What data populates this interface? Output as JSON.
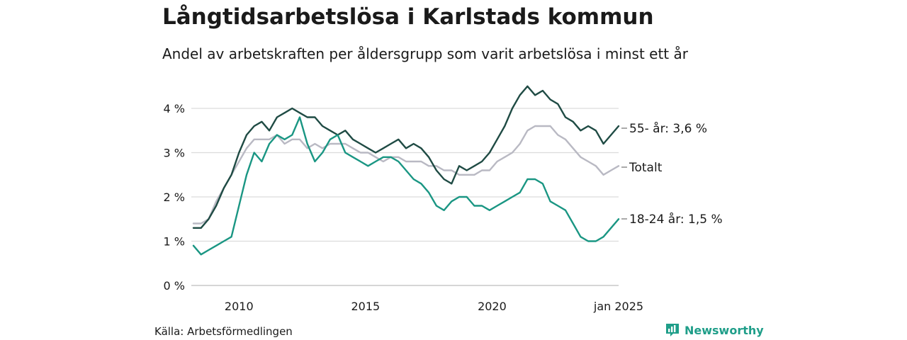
{
  "title": "Långtidsarbetslösa i Karlstads kommun",
  "subtitle": "Andel av arbetskraften per åldersgrupp som varit arbetslösa i minst ett år",
  "source": "Källa: Arbetsförmedlingen",
  "brand": "Newsworthy",
  "colors": {
    "older": "#1f4b44",
    "total": "#b9b9c3",
    "young": "#1a9683",
    "grid": "#dcdcdc",
    "brand": "#1f9e89"
  },
  "chart_data": {
    "type": "line",
    "ylim": [
      0,
      4.5
    ],
    "xlim": [
      2008.2,
      2025.0
    ],
    "y_ticks": [
      {
        "value": 0,
        "label": "0 %"
      },
      {
        "value": 1,
        "label": "1 %"
      },
      {
        "value": 2,
        "label": "2 %"
      },
      {
        "value": 3,
        "label": "3 %"
      },
      {
        "value": 4,
        "label": "4 %"
      }
    ],
    "x_ticks": [
      {
        "value": 2010,
        "label": "2010"
      },
      {
        "value": 2015,
        "label": "2015"
      },
      {
        "value": 2020,
        "label": "2020"
      },
      {
        "value": 2025,
        "label": "jan 2025"
      }
    ],
    "series": [
      {
        "key": "total",
        "name": "Totalt",
        "end_label": "Totalt",
        "x": [
          2008.2,
          2008.5,
          2008.8,
          2009.1,
          2009.4,
          2009.7,
          2010.0,
          2010.3,
          2010.6,
          2010.9,
          2011.2,
          2011.5,
          2011.8,
          2012.1,
          2012.4,
          2012.7,
          2013.0,
          2013.3,
          2013.6,
          2013.9,
          2014.2,
          2014.5,
          2014.8,
          2015.1,
          2015.4,
          2015.7,
          2016.0,
          2016.3,
          2016.6,
          2016.9,
          2017.2,
          2017.5,
          2017.8,
          2018.1,
          2018.4,
          2018.7,
          2019.0,
          2019.3,
          2019.6,
          2019.9,
          2020.2,
          2020.5,
          2020.8,
          2021.1,
          2021.4,
          2021.7,
          2022.0,
          2022.3,
          2022.6,
          2022.9,
          2023.2,
          2023.5,
          2023.8,
          2024.1,
          2024.4,
          2024.7,
          2025.0
        ],
        "y": [
          1.4,
          1.4,
          1.5,
          1.9,
          2.2,
          2.5,
          2.8,
          3.1,
          3.3,
          3.3,
          3.3,
          3.4,
          3.2,
          3.3,
          3.3,
          3.1,
          3.2,
          3.1,
          3.2,
          3.2,
          3.2,
          3.1,
          3.0,
          3.0,
          2.9,
          2.8,
          2.9,
          2.9,
          2.8,
          2.8,
          2.8,
          2.7,
          2.7,
          2.6,
          2.6,
          2.5,
          2.5,
          2.5,
          2.6,
          2.6,
          2.8,
          2.9,
          3.0,
          3.2,
          3.5,
          3.6,
          3.6,
          3.6,
          3.4,
          3.3,
          3.1,
          2.9,
          2.8,
          2.7,
          2.5,
          2.6,
          2.7
        ]
      },
      {
        "key": "older",
        "name": "55- år",
        "end_label": "55- år: 3,6 %",
        "x": [
          2008.2,
          2008.5,
          2008.8,
          2009.1,
          2009.4,
          2009.7,
          2010.0,
          2010.3,
          2010.6,
          2010.9,
          2011.2,
          2011.5,
          2011.8,
          2012.1,
          2012.4,
          2012.7,
          2013.0,
          2013.3,
          2013.6,
          2013.9,
          2014.2,
          2014.5,
          2014.8,
          2015.1,
          2015.4,
          2015.7,
          2016.0,
          2016.3,
          2016.6,
          2016.9,
          2017.2,
          2017.5,
          2017.8,
          2018.1,
          2018.4,
          2018.7,
          2019.0,
          2019.3,
          2019.6,
          2019.9,
          2020.2,
          2020.5,
          2020.8,
          2021.1,
          2021.4,
          2021.7,
          2022.0,
          2022.3,
          2022.6,
          2022.9,
          2023.2,
          2023.5,
          2023.8,
          2024.1,
          2024.4,
          2024.7,
          2025.0
        ],
        "y": [
          1.3,
          1.3,
          1.5,
          1.8,
          2.2,
          2.5,
          3.0,
          3.4,
          3.6,
          3.7,
          3.5,
          3.8,
          3.9,
          4.0,
          3.9,
          3.8,
          3.8,
          3.6,
          3.5,
          3.4,
          3.5,
          3.3,
          3.2,
          3.1,
          3.0,
          3.1,
          3.2,
          3.3,
          3.1,
          3.2,
          3.1,
          2.9,
          2.6,
          2.4,
          2.3,
          2.7,
          2.6,
          2.7,
          2.8,
          3.0,
          3.3,
          3.6,
          4.0,
          4.3,
          4.5,
          4.3,
          4.4,
          4.2,
          4.1,
          3.8,
          3.7,
          3.5,
          3.6,
          3.5,
          3.2,
          3.4,
          3.6
        ]
      },
      {
        "key": "young",
        "name": "18-24 år",
        "end_label": "18-24 år: 1,5 %",
        "x": [
          2008.2,
          2008.5,
          2008.8,
          2009.1,
          2009.4,
          2009.7,
          2010.0,
          2010.3,
          2010.6,
          2010.9,
          2011.2,
          2011.5,
          2011.8,
          2012.1,
          2012.4,
          2012.7,
          2013.0,
          2013.3,
          2013.6,
          2013.9,
          2014.2,
          2014.5,
          2014.8,
          2015.1,
          2015.4,
          2015.7,
          2016.0,
          2016.3,
          2016.6,
          2016.9,
          2017.2,
          2017.5,
          2017.8,
          2018.1,
          2018.4,
          2018.7,
          2019.0,
          2019.3,
          2019.6,
          2019.9,
          2020.2,
          2020.5,
          2020.8,
          2021.1,
          2021.4,
          2021.7,
          2022.0,
          2022.3,
          2022.6,
          2022.9,
          2023.2,
          2023.5,
          2023.8,
          2024.1,
          2024.4,
          2024.7,
          2025.0
        ],
        "y": [
          0.9,
          0.7,
          0.8,
          0.9,
          1.0,
          1.1,
          1.8,
          2.5,
          3.0,
          2.8,
          3.2,
          3.4,
          3.3,
          3.4,
          3.8,
          3.2,
          2.8,
          3.0,
          3.3,
          3.4,
          3.0,
          2.9,
          2.8,
          2.7,
          2.8,
          2.9,
          2.9,
          2.8,
          2.6,
          2.4,
          2.3,
          2.1,
          1.8,
          1.7,
          1.9,
          2.0,
          2.0,
          1.8,
          1.8,
          1.7,
          1.8,
          1.9,
          2.0,
          2.1,
          2.4,
          2.4,
          2.3,
          1.9,
          1.8,
          1.7,
          1.4,
          1.1,
          1.0,
          1.0,
          1.1,
          1.3,
          1.5
        ]
      }
    ]
  }
}
